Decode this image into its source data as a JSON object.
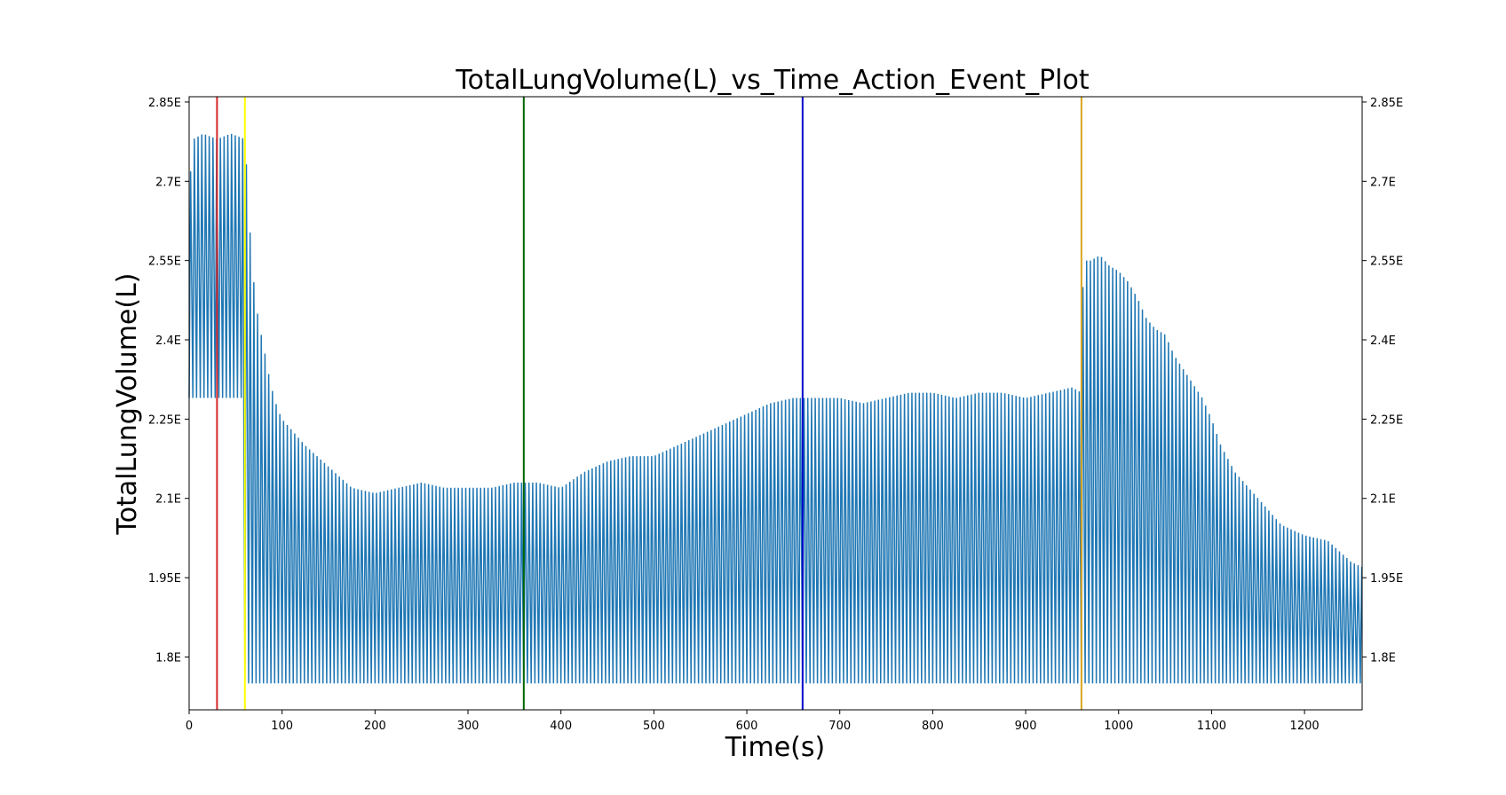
{
  "chart_data": {
    "type": "line",
    "title": "TotalLungVolume(L)_vs_Time_Action_Event_Plot",
    "xlabel": "Time(s)",
    "ylabel": "TotalLungVolume(L)",
    "xlim": [
      0,
      1262
    ],
    "ylim": [
      1.7,
      2.86
    ],
    "x_ticks": [
      0,
      100,
      200,
      300,
      400,
      500,
      600,
      700,
      800,
      900,
      1000,
      1100,
      1200
    ],
    "y_ticks": [
      1.8,
      1.95,
      2.1,
      2.25,
      2.4,
      2.55,
      2.7,
      2.85
    ],
    "y_tick_labels": [
      "1.8E",
      "1.95E",
      "2.1E",
      "2.25E",
      "2.4E",
      "2.55E",
      "2.7E",
      "2.85E"
    ],
    "right_axis_ticks": true,
    "grid": false,
    "legend": "none",
    "series": [
      {
        "color": "#1f77b4",
        "breath_period_s": 4,
        "trough": 1.75,
        "early_trough": 2.29,
        "early_trough_until_s": 60,
        "peak_envelope": {
          "x": [
            0,
            5,
            15,
            30,
            45,
            60,
            62,
            66,
            70,
            75,
            80,
            85,
            90,
            95,
            100,
            110,
            125,
            150,
            175,
            200,
            225,
            250,
            275,
            300,
            325,
            350,
            375,
            400,
            425,
            450,
            475,
            500,
            525,
            550,
            575,
            600,
            625,
            650,
            675,
            700,
            725,
            750,
            775,
            800,
            825,
            850,
            875,
            900,
            925,
            950,
            960,
            962,
            970,
            980,
            990,
            1000,
            1010,
            1020,
            1030,
            1040,
            1050,
            1060,
            1075,
            1090,
            1100,
            1110,
            1125,
            1150,
            1175,
            1200,
            1225,
            1250,
            1262
          ],
          "y": [
            2.69,
            2.78,
            2.79,
            2.78,
            2.79,
            2.78,
            2.72,
            2.59,
            2.5,
            2.43,
            2.39,
            2.34,
            2.3,
            2.27,
            2.25,
            2.23,
            2.2,
            2.16,
            2.12,
            2.11,
            2.12,
            2.13,
            2.12,
            2.12,
            2.12,
            2.13,
            2.13,
            2.12,
            2.15,
            2.17,
            2.18,
            2.18,
            2.2,
            2.22,
            2.24,
            2.26,
            2.28,
            2.29,
            2.29,
            2.29,
            2.28,
            2.29,
            2.3,
            2.3,
            2.29,
            2.3,
            2.3,
            2.29,
            2.3,
            2.31,
            2.3,
            2.55,
            2.55,
            2.56,
            2.54,
            2.53,
            2.51,
            2.48,
            2.44,
            2.42,
            2.41,
            2.37,
            2.33,
            2.29,
            2.25,
            2.2,
            2.15,
            2.1,
            2.05,
            2.03,
            2.02,
            1.98,
            1.97
          ]
        }
      }
    ],
    "event_lines": [
      {
        "x": 30,
        "color": "#d62728"
      },
      {
        "x": 60,
        "color": "#ffff00"
      },
      {
        "x": 360,
        "color": "#006400"
      },
      {
        "x": 660,
        "color": "#0000cd"
      },
      {
        "x": 960,
        "color": "#daa520"
      }
    ]
  }
}
